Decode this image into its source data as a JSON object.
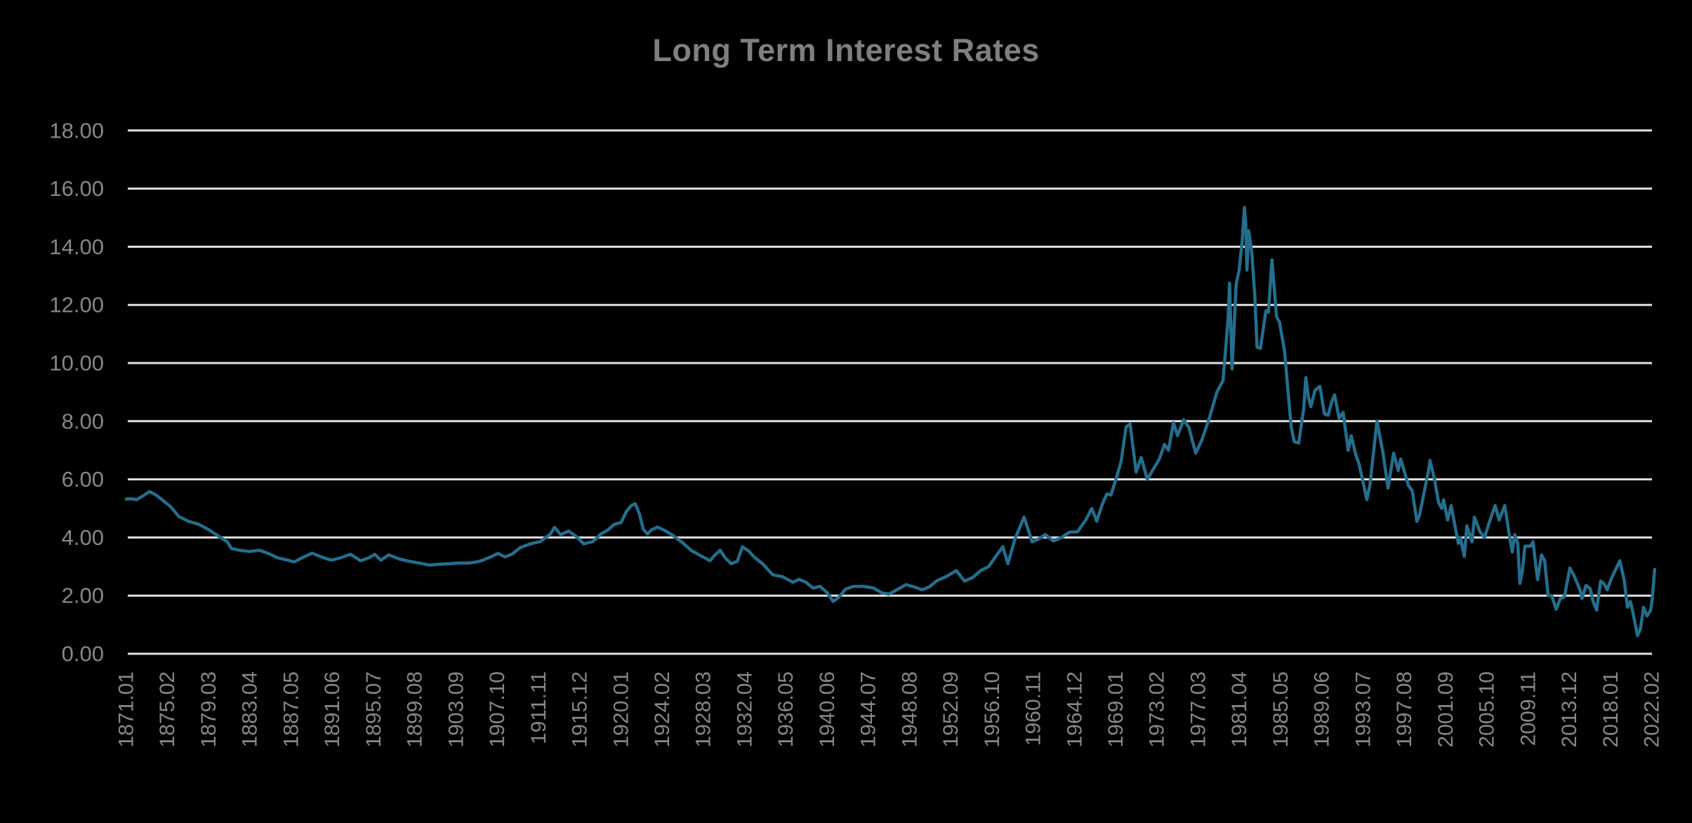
{
  "header": {
    "title": "Long Term Interest Rates",
    "title_color": "#7f7f7f"
  },
  "style": {
    "background": "#000000",
    "grid_color": "#e0e0e0",
    "tick_label_color": "#878787",
    "line_color": "#246E8D"
  },
  "chart_data": {
    "type": "line",
    "title": "Long Term Interest Rates",
    "xlabel": "",
    "ylabel": "",
    "legend": "none",
    "grid": {
      "horizontal": true,
      "vertical": false
    },
    "y_axis": {
      "min": 0,
      "max": 18,
      "step": 2,
      "tick_labels": [
        "0.00",
        "2.00",
        "4.00",
        "6.00",
        "8.00",
        "10.00",
        "12.00",
        "14.00",
        "16.00",
        "18.00"
      ]
    },
    "x_axis": {
      "start_label": "1871.01",
      "end_label": "2022.02",
      "tick_interval_months": 49,
      "label_rotation_deg": 90,
      "tick_labels": [
        "1871.01",
        "1875.02",
        "1879.03",
        "1883.04",
        "1887.05",
        "1891.06",
        "1895.07",
        "1899.08",
        "1903.09",
        "1907.10",
        "1911.11",
        "1915.12",
        "1920.01",
        "1924.02",
        "1928.03",
        "1932.04",
        "1936.05",
        "1940.06",
        "1944.07",
        "1948.08",
        "1952.09",
        "1956.10",
        "1960.11",
        "1964.12",
        "1969.01",
        "1973.02",
        "1977.03",
        "1981.04",
        "1985.05",
        "1989.06",
        "1993.07",
        "1997.08",
        "2001.09",
        "2005.10",
        "2009.11",
        "2013.12",
        "2018.01",
        "2022.02"
      ]
    },
    "series": [
      {
        "name": "Long Term Interest Rates",
        "color": "#246E8D",
        "points": [
          [
            1871.0,
            5.32
          ],
          [
            1871.5,
            5.33
          ],
          [
            1872.0,
            5.3
          ],
          [
            1872.6,
            5.42
          ],
          [
            1873.3,
            5.58
          ],
          [
            1874.0,
            5.45
          ],
          [
            1874.6,
            5.28
          ],
          [
            1875.4,
            5.05
          ],
          [
            1876.2,
            4.72
          ],
          [
            1877.2,
            4.55
          ],
          [
            1878.2,
            4.45
          ],
          [
            1879.2,
            4.26
          ],
          [
            1880.1,
            4.05
          ],
          [
            1881.0,
            3.85
          ],
          [
            1881.4,
            3.62
          ],
          [
            1882.2,
            3.56
          ],
          [
            1883.2,
            3.52
          ],
          [
            1884.2,
            3.56
          ],
          [
            1885.0,
            3.46
          ],
          [
            1886.0,
            3.3
          ],
          [
            1887.0,
            3.22
          ],
          [
            1887.6,
            3.16
          ],
          [
            1888.5,
            3.32
          ],
          [
            1889.4,
            3.46
          ],
          [
            1890.4,
            3.32
          ],
          [
            1891.3,
            3.22
          ],
          [
            1892.2,
            3.3
          ],
          [
            1893.2,
            3.42
          ],
          [
            1894.2,
            3.2
          ],
          [
            1895.0,
            3.3
          ],
          [
            1895.6,
            3.42
          ],
          [
            1896.2,
            3.22
          ],
          [
            1897.0,
            3.4
          ],
          [
            1898.0,
            3.26
          ],
          [
            1899.0,
            3.18
          ],
          [
            1900.0,
            3.12
          ],
          [
            1901.0,
            3.05
          ],
          [
            1902.0,
            3.08
          ],
          [
            1903.0,
            3.1
          ],
          [
            1904.0,
            3.12
          ],
          [
            1905.0,
            3.12
          ],
          [
            1906.0,
            3.18
          ],
          [
            1907.0,
            3.32
          ],
          [
            1907.8,
            3.45
          ],
          [
            1908.5,
            3.33
          ],
          [
            1909.2,
            3.43
          ],
          [
            1910.0,
            3.65
          ],
          [
            1911.0,
            3.78
          ],
          [
            1912.0,
            3.86
          ],
          [
            1913.0,
            4.12
          ],
          [
            1913.4,
            4.35
          ],
          [
            1914.0,
            4.1
          ],
          [
            1914.8,
            4.22
          ],
          [
            1915.5,
            4.05
          ],
          [
            1916.3,
            3.78
          ],
          [
            1917.2,
            3.86
          ],
          [
            1918.0,
            4.12
          ],
          [
            1918.7,
            4.26
          ],
          [
            1919.3,
            4.45
          ],
          [
            1920.0,
            4.52
          ],
          [
            1920.5,
            4.88
          ],
          [
            1921.0,
            5.1
          ],
          [
            1921.4,
            5.16
          ],
          [
            1921.8,
            4.82
          ],
          [
            1922.2,
            4.28
          ],
          [
            1922.6,
            4.12
          ],
          [
            1923.0,
            4.26
          ],
          [
            1923.6,
            4.36
          ],
          [
            1924.2,
            4.26
          ],
          [
            1925.0,
            4.1
          ],
          [
            1926.0,
            3.84
          ],
          [
            1927.0,
            3.54
          ],
          [
            1928.0,
            3.35
          ],
          [
            1928.8,
            3.2
          ],
          [
            1929.3,
            3.4
          ],
          [
            1929.8,
            3.56
          ],
          [
            1930.3,
            3.3
          ],
          [
            1930.9,
            3.1
          ],
          [
            1931.5,
            3.18
          ],
          [
            1932.0,
            3.68
          ],
          [
            1932.6,
            3.54
          ],
          [
            1933.2,
            3.32
          ],
          [
            1934.0,
            3.1
          ],
          [
            1935.0,
            2.72
          ],
          [
            1936.0,
            2.65
          ],
          [
            1937.0,
            2.46
          ],
          [
            1937.6,
            2.56
          ],
          [
            1938.3,
            2.46
          ],
          [
            1939.0,
            2.26
          ],
          [
            1939.7,
            2.32
          ],
          [
            1940.4,
            2.1
          ],
          [
            1941.0,
            1.8
          ],
          [
            1941.6,
            1.96
          ],
          [
            1942.2,
            2.22
          ],
          [
            1943.0,
            2.32
          ],
          [
            1944.0,
            2.32
          ],
          [
            1945.0,
            2.26
          ],
          [
            1945.8,
            2.1
          ],
          [
            1946.5,
            2.05
          ],
          [
            1947.3,
            2.2
          ],
          [
            1948.2,
            2.38
          ],
          [
            1949.0,
            2.3
          ],
          [
            1949.8,
            2.2
          ],
          [
            1950.5,
            2.3
          ],
          [
            1951.3,
            2.52
          ],
          [
            1952.2,
            2.66
          ],
          [
            1953.2,
            2.86
          ],
          [
            1954.0,
            2.5
          ],
          [
            1954.8,
            2.62
          ],
          [
            1955.6,
            2.86
          ],
          [
            1956.4,
            3.0
          ],
          [
            1957.2,
            3.4
          ],
          [
            1957.8,
            3.68
          ],
          [
            1958.3,
            3.1
          ],
          [
            1959.0,
            3.95
          ],
          [
            1959.9,
            4.7
          ],
          [
            1960.7,
            3.85
          ],
          [
            1961.4,
            3.96
          ],
          [
            1962.0,
            4.1
          ],
          [
            1962.8,
            3.88
          ],
          [
            1963.6,
            4.0
          ],
          [
            1964.4,
            4.18
          ],
          [
            1965.2,
            4.2
          ],
          [
            1966.0,
            4.6
          ],
          [
            1966.6,
            5.0
          ],
          [
            1967.1,
            4.56
          ],
          [
            1967.6,
            5.1
          ],
          [
            1968.1,
            5.5
          ],
          [
            1968.5,
            5.46
          ],
          [
            1969.0,
            6.0
          ],
          [
            1969.5,
            6.6
          ],
          [
            1970.0,
            7.8
          ],
          [
            1970.4,
            7.9
          ],
          [
            1971.0,
            6.25
          ],
          [
            1971.5,
            6.75
          ],
          [
            1972.1,
            6.0
          ],
          [
            1972.7,
            6.35
          ],
          [
            1973.3,
            6.7
          ],
          [
            1973.8,
            7.2
          ],
          [
            1974.2,
            7.0
          ],
          [
            1974.7,
            7.95
          ],
          [
            1975.1,
            7.5
          ],
          [
            1975.7,
            8.05
          ],
          [
            1976.2,
            7.8
          ],
          [
            1976.9,
            6.9
          ],
          [
            1977.5,
            7.35
          ],
          [
            1978.2,
            8.05
          ],
          [
            1979.0,
            9.0
          ],
          [
            1979.6,
            9.4
          ],
          [
            1980.1,
            11.5
          ],
          [
            1980.25,
            12.75
          ],
          [
            1980.5,
            9.8
          ],
          [
            1980.9,
            12.7
          ],
          [
            1981.2,
            13.2
          ],
          [
            1981.5,
            14.2
          ],
          [
            1981.72,
            15.35
          ],
          [
            1981.85,
            14.8
          ],
          [
            1981.97,
            13.2
          ],
          [
            1982.15,
            14.55
          ],
          [
            1982.45,
            13.8
          ],
          [
            1982.75,
            12.3
          ],
          [
            1982.97,
            10.55
          ],
          [
            1983.3,
            10.5
          ],
          [
            1983.85,
            11.8
          ],
          [
            1984.1,
            11.75
          ],
          [
            1984.45,
            13.55
          ],
          [
            1984.9,
            11.6
          ],
          [
            1985.2,
            11.4
          ],
          [
            1985.7,
            10.4
          ],
          [
            1986.0,
            9.2
          ],
          [
            1986.35,
            7.8
          ],
          [
            1986.65,
            7.3
          ],
          [
            1987.1,
            7.25
          ],
          [
            1987.6,
            8.45
          ],
          [
            1987.8,
            9.5
          ],
          [
            1988.05,
            8.85
          ],
          [
            1988.3,
            8.5
          ],
          [
            1988.7,
            9.05
          ],
          [
            1989.2,
            9.2
          ],
          [
            1989.65,
            8.25
          ],
          [
            1990.0,
            8.2
          ],
          [
            1990.35,
            8.65
          ],
          [
            1990.65,
            8.9
          ],
          [
            1991.1,
            8.1
          ],
          [
            1991.5,
            8.3
          ],
          [
            1992.0,
            7.0
          ],
          [
            1992.3,
            7.5
          ],
          [
            1992.75,
            6.85
          ],
          [
            1993.1,
            6.5
          ],
          [
            1993.85,
            5.3
          ],
          [
            1994.15,
            5.8
          ],
          [
            1994.85,
            8.0
          ],
          [
            1995.45,
            6.9
          ],
          [
            1995.95,
            5.7
          ],
          [
            1996.5,
            6.9
          ],
          [
            1996.95,
            6.3
          ],
          [
            1997.2,
            6.7
          ],
          [
            1997.95,
            5.8
          ],
          [
            1998.35,
            5.6
          ],
          [
            1998.8,
            4.55
          ],
          [
            1999.05,
            4.75
          ],
          [
            1999.95,
            6.3
          ],
          [
            2000.1,
            6.65
          ],
          [
            2000.55,
            6.0
          ],
          [
            2000.95,
            5.2
          ],
          [
            2001.25,
            5.0
          ],
          [
            2001.45,
            5.3
          ],
          [
            2001.85,
            4.6
          ],
          [
            2002.2,
            5.1
          ],
          [
            2002.9,
            3.8
          ],
          [
            2003.1,
            4.0
          ],
          [
            2003.5,
            3.35
          ],
          [
            2003.75,
            4.4
          ],
          [
            2004.25,
            3.85
          ],
          [
            2004.5,
            4.7
          ],
          [
            2005.05,
            4.2
          ],
          [
            2005.5,
            4.0
          ],
          [
            2005.95,
            4.5
          ],
          [
            2006.55,
            5.1
          ],
          [
            2006.95,
            4.6
          ],
          [
            2007.5,
            5.1
          ],
          [
            2007.95,
            4.1
          ],
          [
            2008.25,
            3.5
          ],
          [
            2008.5,
            4.1
          ],
          [
            2008.8,
            3.8
          ],
          [
            2009.0,
            2.42
          ],
          [
            2009.25,
            2.85
          ],
          [
            2009.5,
            3.7
          ],
          [
            2010.05,
            3.7
          ],
          [
            2010.3,
            3.85
          ],
          [
            2010.75,
            2.55
          ],
          [
            2011.15,
            3.4
          ],
          [
            2011.45,
            3.2
          ],
          [
            2011.8,
            2.0
          ],
          [
            2012.15,
            2.0
          ],
          [
            2012.6,
            1.53
          ],
          [
            2013.0,
            1.9
          ],
          [
            2013.4,
            1.95
          ],
          [
            2013.95,
            2.95
          ],
          [
            2014.35,
            2.7
          ],
          [
            2014.95,
            2.2
          ],
          [
            2015.15,
            1.9
          ],
          [
            2015.55,
            2.35
          ],
          [
            2015.95,
            2.25
          ],
          [
            2016.25,
            1.8
          ],
          [
            2016.6,
            1.5
          ],
          [
            2017.0,
            2.5
          ],
          [
            2017.35,
            2.4
          ],
          [
            2017.65,
            2.2
          ],
          [
            2018.05,
            2.58
          ],
          [
            2018.9,
            3.2
          ],
          [
            2019.35,
            2.5
          ],
          [
            2019.65,
            1.6
          ],
          [
            2019.95,
            1.8
          ],
          [
            2020.15,
            1.5
          ],
          [
            2020.65,
            0.62
          ],
          [
            2020.95,
            0.87
          ],
          [
            2021.25,
            1.6
          ],
          [
            2021.6,
            1.3
          ],
          [
            2021.95,
            1.5
          ],
          [
            2022.1,
            1.85
          ],
          [
            2022.35,
            2.9
          ]
        ]
      }
    ]
  }
}
